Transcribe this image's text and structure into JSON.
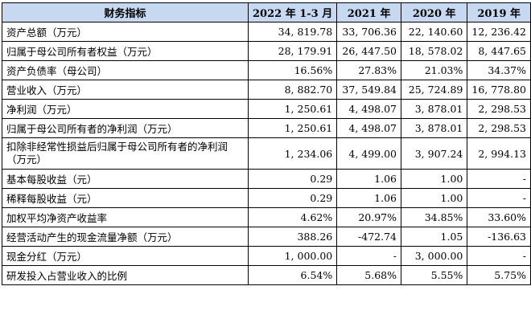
{
  "table": {
    "headers": [
      "财务指标",
      "2022 年 1-3 月",
      "2021 年",
      "2020 年",
      "2019 年"
    ],
    "rows": [
      {
        "label": "资产总额（万元）",
        "values": [
          "34, 819.78",
          "33, 706.36",
          "22, 140.60",
          "12, 236.42"
        ]
      },
      {
        "label": "归属于母公司所有者权益（万元）",
        "values": [
          "28, 179.91",
          "26, 447.50",
          "18, 578.02",
          "8, 447.65"
        ]
      },
      {
        "label": "资产负债率（母公司）",
        "values": [
          "16.56%",
          "27.83%",
          "21.03%",
          "34.37%"
        ]
      },
      {
        "label": "营业收入（万元）",
        "values": [
          "8, 882.70",
          "37, 549.84",
          "25, 724.89",
          "16, 778.80"
        ]
      },
      {
        "label": "净利润（万元）",
        "values": [
          "1, 250.61",
          "4, 498.07",
          "3, 878.01",
          "2, 298.53"
        ]
      },
      {
        "label": "归属于母公司所有者的净利润（万元）",
        "values": [
          "1, 250.61",
          "4, 498.07",
          "3, 878.01",
          "2, 298.53"
        ]
      },
      {
        "label": "扣除非经常性损益后归属于母公司所有者的净利润（万元）",
        "values": [
          "1, 234.06",
          "4, 499.00",
          "3, 907.24",
          "2, 994.13"
        ]
      },
      {
        "label": "基本每股收益（元）",
        "values": [
          "0.29",
          "1.06",
          "1.00",
          "-"
        ]
      },
      {
        "label": "稀释每股收益（元）",
        "values": [
          "0.29",
          "1.06",
          "1.00",
          "-"
        ]
      },
      {
        "label": "加权平均净资产收益率",
        "values": [
          "4.62%",
          "20.97%",
          "34.85%",
          "33.60%"
        ]
      },
      {
        "label": "经营活动产生的现金流量净额（万元）",
        "values": [
          "388.26",
          "-472.74",
          "1.05",
          "-136.63"
        ]
      },
      {
        "label": "现金分红（万元）",
        "values": [
          "1, 000.00",
          "-",
          "3, 000.00",
          "-"
        ]
      },
      {
        "label": "研发投入占营业收入的比例",
        "values": [
          "6.54%",
          "5.68%",
          "5.55%",
          "5.75%"
        ]
      }
    ]
  }
}
